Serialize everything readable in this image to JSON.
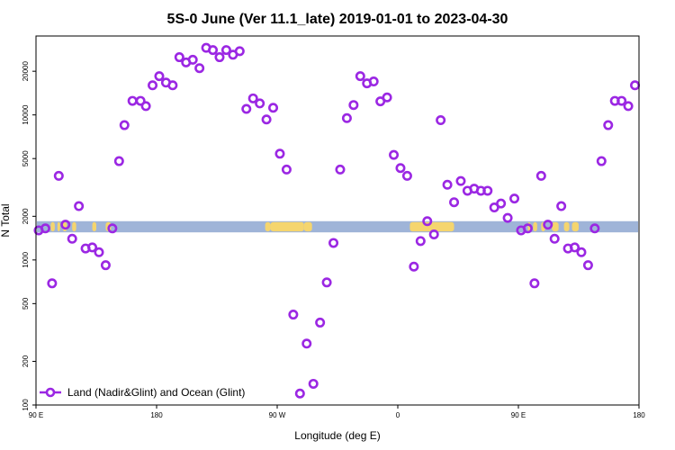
{
  "chart_data": {
    "type": "scatter",
    "title": "5S-0 June (Ver 11.1_late)   2019-01-01 to 2023-04-30",
    "xlabel": "Longitude (deg E)",
    "ylabel": "N Total",
    "x_scale": "linear",
    "y_scale": "log",
    "xlim": [
      90,
      540
    ],
    "ylim": [
      100,
      35000
    ],
    "x_ticks": [
      {
        "value": 90,
        "label": "90 E"
      },
      {
        "value": 180,
        "label": "180"
      },
      {
        "value": 270,
        "label": "90 W"
      },
      {
        "value": 360,
        "label": "0"
      },
      {
        "value": 450,
        "label": "90 E"
      },
      {
        "value": 540,
        "label": "180"
      }
    ],
    "y_ticks": [
      {
        "value": 100,
        "label": "100"
      },
      {
        "value": 200,
        "label": "200"
      },
      {
        "value": 500,
        "label": "500"
      },
      {
        "value": 1000,
        "label": "1000"
      },
      {
        "value": 2000,
        "label": "2000"
      },
      {
        "value": 5000,
        "label": "5000"
      },
      {
        "value": 10000,
        "label": "10000"
      },
      {
        "value": 20000,
        "label": "20000"
      }
    ],
    "band": {
      "y_from": 1550,
      "y_to": 1850,
      "ocean_color": "#9fb4d8",
      "land_color": "#f5d56e"
    },
    "land_segments": [
      [
        101,
        104
      ],
      [
        106,
        108
      ],
      [
        110,
        113
      ],
      [
        117,
        120
      ],
      [
        132,
        135
      ],
      [
        142,
        146
      ],
      [
        261,
        265
      ],
      [
        265,
        290
      ],
      [
        290,
        296
      ],
      [
        369,
        402
      ],
      [
        457,
        459
      ],
      [
        461,
        464
      ],
      [
        467,
        470
      ],
      [
        475,
        480
      ],
      [
        484,
        488
      ],
      [
        490,
        495
      ]
    ],
    "legend": {
      "position": "bottom-left",
      "label": "Land (Nadir&Glint) and Ocean (Glint)"
    },
    "series": [
      {
        "name": "Land (Nadir&Glint) and Ocean (Glint)",
        "color": "#9b27e3",
        "points": [
          [
            92,
            1600
          ],
          [
            97,
            1650
          ],
          [
            102,
            690
          ],
          [
            107,
            3800
          ],
          [
            112,
            1750
          ],
          [
            117,
            1400
          ],
          [
            122,
            2350
          ],
          [
            127,
            1200
          ],
          [
            132,
            1220
          ],
          [
            137,
            1130
          ],
          [
            142,
            920
          ],
          [
            147,
            1650
          ],
          [
            152,
            4800
          ],
          [
            156,
            8500
          ],
          [
            162,
            12500
          ],
          [
            168,
            12500
          ],
          [
            172,
            11500
          ],
          [
            177,
            16000
          ],
          [
            182,
            18500
          ],
          [
            187,
            16700
          ],
          [
            192,
            16000
          ],
          [
            197,
            25000
          ],
          [
            202,
            23000
          ],
          [
            207,
            24000
          ],
          [
            212,
            21000
          ],
          [
            217,
            29000
          ],
          [
            222,
            28000
          ],
          [
            227,
            25000
          ],
          [
            232,
            28000
          ],
          [
            237,
            26000
          ],
          [
            242,
            27500
          ],
          [
            247,
            11000
          ],
          [
            252,
            13000
          ],
          [
            257,
            12000
          ],
          [
            262,
            9300
          ],
          [
            267,
            11200
          ],
          [
            272,
            5400
          ],
          [
            277,
            4200
          ],
          [
            282,
            420
          ],
          [
            287,
            120
          ],
          [
            292,
            265
          ],
          [
            297,
            140
          ],
          [
            302,
            370
          ],
          [
            307,
            700
          ],
          [
            312,
            1310
          ],
          [
            317,
            4200
          ],
          [
            322,
            9500
          ],
          [
            327,
            11700
          ],
          [
            332,
            18500
          ],
          [
            337,
            16500
          ],
          [
            342,
            17000
          ],
          [
            347,
            12400
          ],
          [
            352,
            13200
          ],
          [
            357,
            5300
          ],
          [
            362,
            4300
          ],
          [
            367,
            3800
          ],
          [
            372,
            900
          ],
          [
            377,
            1350
          ],
          [
            382,
            1850
          ],
          [
            387,
            1500
          ],
          [
            392,
            9200
          ],
          [
            397,
            3300
          ],
          [
            402,
            2500
          ],
          [
            407,
            3500
          ],
          [
            412,
            3000
          ],
          [
            417,
            3100
          ],
          [
            422,
            3000
          ],
          [
            427,
            3000
          ],
          [
            432,
            2300
          ],
          [
            437,
            2450
          ],
          [
            442,
            1950
          ],
          [
            447,
            2650
          ],
          [
            452,
            1600
          ],
          [
            457,
            1650
          ],
          [
            462,
            690
          ],
          [
            467,
            3800
          ],
          [
            472,
            1750
          ],
          [
            477,
            1400
          ],
          [
            482,
            2350
          ],
          [
            487,
            1200
          ],
          [
            492,
            1220
          ],
          [
            497,
            1130
          ],
          [
            502,
            920
          ],
          [
            507,
            1650
          ],
          [
            512,
            4800
          ],
          [
            517,
            8500
          ],
          [
            522,
            12500
          ],
          [
            527,
            12500
          ],
          [
            532,
            11500
          ],
          [
            537,
            16000
          ]
        ]
      }
    ]
  }
}
